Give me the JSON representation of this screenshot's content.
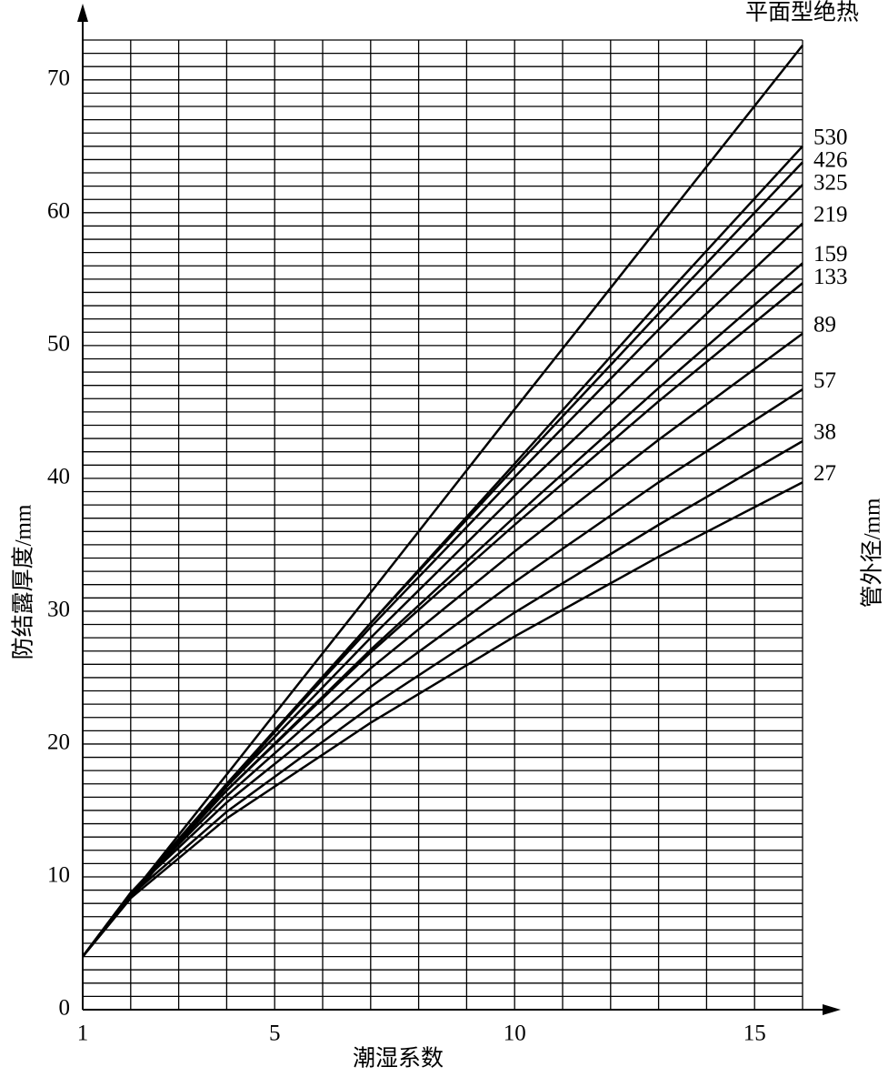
{
  "chart_data": {
    "type": "line",
    "xlabel": "潮湿系数",
    "ylabel": "防结露厚度/mm",
    "y2label": "管外径/mm",
    "x": [
      1,
      2,
      4,
      7,
      10,
      13,
      16
    ],
    "series": [
      {
        "name": "平面型绝热",
        "color": "#000000",
        "values": [
          4,
          8.6,
          17.7,
          31.4,
          45.2,
          58.9,
          72.6
        ]
      },
      {
        "name": "530",
        "color": "#000000",
        "values": [
          4,
          8.4,
          16.8,
          29.1,
          41.1,
          53.2,
          65
        ]
      },
      {
        "name": "426",
        "color": "#000000",
        "values": [
          4,
          8.6,
          17.0,
          29.1,
          40.8,
          52.4,
          63.8
        ]
      },
      {
        "name": "325",
        "color": "#000000",
        "values": [
          4,
          8.7,
          17.0,
          28.8,
          40.1,
          51.2,
          62.1
        ]
      },
      {
        "name": "219",
        "color": "#000000",
        "values": [
          4,
          8.7,
          16.8,
          28.0,
          38.7,
          49.0,
          59.2
        ]
      },
      {
        "name": "159",
        "color": "#000000",
        "values": [
          4,
          8.7,
          16.5,
          27.1,
          37.1,
          46.8,
          56.2
        ]
      },
      {
        "name": "133",
        "color": "#000000",
        "values": [
          4,
          8.8,
          16.5,
          26.9,
          36.5,
          45.8,
          54.7
        ]
      },
      {
        "name": "89",
        "color": "#000000",
        "values": [
          4,
          8.8,
          16.1,
          25.7,
          34.5,
          42.9,
          50.9
        ]
      },
      {
        "name": "57",
        "color": "#000000",
        "values": [
          4,
          8.8,
          15.6,
          24.3,
          32.2,
          39.7,
          46.7
        ]
      },
      {
        "name": "38",
        "color": "#000000",
        "values": [
          4,
          8.6,
          14.9,
          22.8,
          29.9,
          36.5,
          42.8
        ]
      },
      {
        "name": "27",
        "color": "#000000",
        "values": [
          4,
          8.4,
          14.4,
          21.6,
          28.1,
          34.1,
          39.7
        ]
      }
    ],
    "xlim": [
      1,
      16
    ],
    "ylim": [
      0,
      73
    ],
    "xticks": [
      1,
      5,
      10,
      15
    ],
    "yticks": [
      0,
      10,
      20,
      30,
      40,
      50,
      60,
      70
    ],
    "xgrid": [
      1,
      2,
      3,
      4,
      5,
      6,
      7,
      8,
      9,
      10,
      11,
      12,
      13,
      14,
      15,
      16
    ],
    "ygrid": [
      0,
      1,
      2,
      3,
      4,
      5,
      6,
      7,
      8,
      9,
      10,
      11,
      12,
      13,
      14,
      15,
      16,
      17,
      18,
      19,
      20,
      21,
      22,
      23,
      24,
      25,
      26,
      27,
      28,
      29,
      30,
      31,
      32,
      33,
      34,
      35,
      36,
      37,
      38,
      39,
      40,
      41,
      42,
      43,
      44,
      45,
      46,
      47,
      48,
      49,
      50,
      51,
      52,
      53,
      54,
      55,
      56,
      57,
      58,
      59,
      60,
      61,
      62,
      63,
      64,
      65,
      66,
      67,
      68,
      69,
      70,
      71,
      72,
      73
    ],
    "grid": true
  }
}
